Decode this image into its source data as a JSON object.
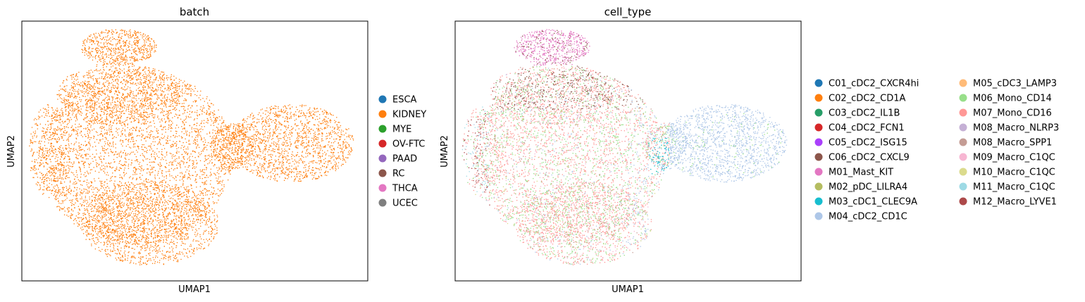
{
  "chart_data": [
    {
      "type": "scatter",
      "title": "batch",
      "xlabel": "UMAP1",
      "ylabel": "UMAP2",
      "grid": false,
      "legend_position": "right",
      "legend": [
        {
          "label": "ESCA",
          "color": "#1f77b4"
        },
        {
          "label": "KIDNEY",
          "color": "#ff7f0e"
        },
        {
          "label": "MYE",
          "color": "#2ca02c"
        },
        {
          "label": "OV-FTC",
          "color": "#d62728"
        },
        {
          "label": "PAAD",
          "color": "#9467bd"
        },
        {
          "label": "RC",
          "color": "#8c564b"
        },
        {
          "label": "THCA",
          "color": "#e377c2"
        },
        {
          "label": "UCEC",
          "color": "#7f7f7f"
        }
      ],
      "series_present": [
        "KIDNEY"
      ]
    },
    {
      "type": "scatter",
      "title": "cell_type",
      "xlabel": "UMAP1",
      "ylabel": "UMAP2",
      "grid": false,
      "legend_position": "right",
      "legend": [
        {
          "label": "C01_cDC2_CXCR4hi",
          "color": "#1f77b4"
        },
        {
          "label": "C02_cDC2_CD1A",
          "color": "#ff7f0e"
        },
        {
          "label": "C03_cDC2_IL1B",
          "color": "#279e68"
        },
        {
          "label": "C04_cDC2_FCN1",
          "color": "#d62728"
        },
        {
          "label": "C05_cDC2_ISG15",
          "color": "#aa40fc"
        },
        {
          "label": "C06_cDC2_CXCL9",
          "color": "#8c564b"
        },
        {
          "label": "M01_Mast_KIT",
          "color": "#e377c2"
        },
        {
          "label": "M02_pDC_LILRA4",
          "color": "#b5bd61"
        },
        {
          "label": "M03_cDC1_CLEC9A",
          "color": "#17becf"
        },
        {
          "label": "M04_cDC2_CD1C",
          "color": "#aec7e8"
        },
        {
          "label": "M05_cDC3_LAMP3",
          "color": "#ffbb78"
        },
        {
          "label": "M06_Mono_CD14",
          "color": "#98df8a"
        },
        {
          "label": "M07_Mono_CD16",
          "color": "#ff9896"
        },
        {
          "label": "M08_Macro_NLRP3",
          "color": "#c5b0d5"
        },
        {
          "label": "M08_Macro_SPP1",
          "color": "#c49c94"
        },
        {
          "label": "M09_Macro_C1QC",
          "color": "#f7b6d2"
        },
        {
          "label": "M10_Macro_C1QC",
          "color": "#dbdb8d"
        },
        {
          "label": "M11_Macro_C1QC",
          "color": "#9edae5"
        },
        {
          "label": "M12_Macro_LYVE1",
          "color": "#ad494a"
        }
      ]
    }
  ]
}
